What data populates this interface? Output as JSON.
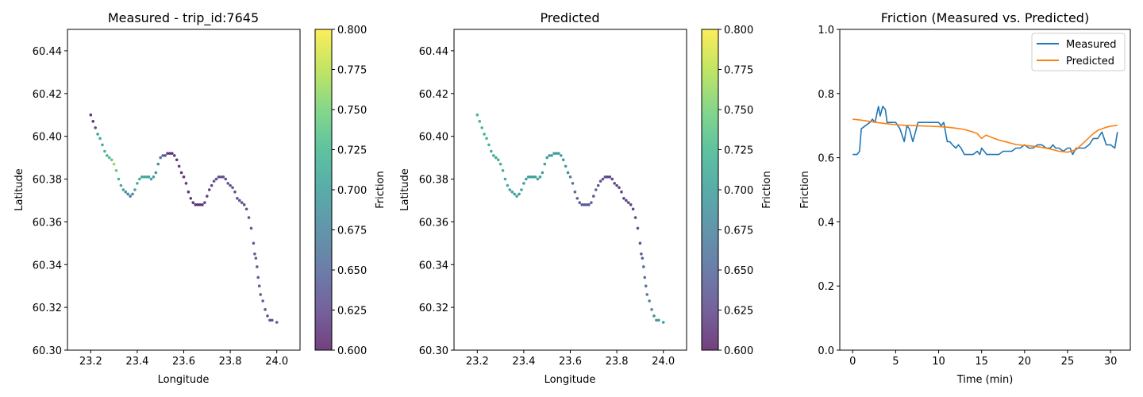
{
  "chart_data": [
    {
      "type": "scatter",
      "title": "Measured - trip_id:7645",
      "xlabel": "Longitude",
      "ylabel": "Latitude",
      "xlim": [
        23.1,
        24.1
      ],
      "ylim": [
        60.3,
        60.45
      ],
      "xticks": [
        "23.2",
        "23.4",
        "23.6",
        "23.8",
        "24.0"
      ],
      "yticks": [
        "60.30",
        "60.32",
        "60.34",
        "60.36",
        "60.38",
        "60.40",
        "60.42",
        "60.44"
      ],
      "colorbar": {
        "label": "Friction",
        "range": [
          0.6,
          0.8
        ],
        "ticks": [
          "0.600",
          "0.625",
          "0.650",
          "0.675",
          "0.700",
          "0.725",
          "0.750",
          "0.775",
          "0.800"
        ]
      },
      "points": [
        [
          23.2,
          60.41,
          0.61
        ],
        [
          23.21,
          60.407,
          0.61
        ],
        [
          23.22,
          60.404,
          0.62
        ],
        [
          23.23,
          60.401,
          0.7
        ],
        [
          23.24,
          60.399,
          0.71
        ],
        [
          23.25,
          60.396,
          0.71
        ],
        [
          23.26,
          60.393,
          0.72
        ],
        [
          23.27,
          60.391,
          0.72
        ],
        [
          23.28,
          60.39,
          0.73
        ],
        [
          23.29,
          60.389,
          0.74
        ],
        [
          23.3,
          60.387,
          0.76
        ],
        [
          23.31,
          60.384,
          0.74
        ],
        [
          23.32,
          60.38,
          0.72
        ],
        [
          23.33,
          60.377,
          0.71
        ],
        [
          23.34,
          60.375,
          0.7
        ],
        [
          23.35,
          60.374,
          0.69
        ],
        [
          23.36,
          60.373,
          0.67
        ],
        [
          23.37,
          60.372,
          0.66
        ],
        [
          23.38,
          60.373,
          0.68
        ],
        [
          23.39,
          60.375,
          0.7
        ],
        [
          23.4,
          60.378,
          0.71
        ],
        [
          23.41,
          60.38,
          0.71
        ],
        [
          23.42,
          60.381,
          0.71
        ],
        [
          23.43,
          60.381,
          0.71
        ],
        [
          23.44,
          60.381,
          0.71
        ],
        [
          23.45,
          60.381,
          0.7
        ],
        [
          23.46,
          60.38,
          0.7
        ],
        [
          23.47,
          60.381,
          0.7
        ],
        [
          23.48,
          60.383,
          0.69
        ],
        [
          23.49,
          60.387,
          0.68
        ],
        [
          23.5,
          60.39,
          0.66
        ],
        [
          23.51,
          60.391,
          0.65
        ],
        [
          23.52,
          60.391,
          0.63
        ],
        [
          23.53,
          60.392,
          0.62
        ],
        [
          23.54,
          60.392,
          0.61
        ],
        [
          23.55,
          60.392,
          0.61
        ],
        [
          23.56,
          60.391,
          0.61
        ],
        [
          23.57,
          60.389,
          0.61
        ],
        [
          23.58,
          60.386,
          0.61
        ],
        [
          23.59,
          60.383,
          0.61
        ],
        [
          23.6,
          60.381,
          0.61
        ],
        [
          23.61,
          60.378,
          0.61
        ],
        [
          23.62,
          60.374,
          0.61
        ],
        [
          23.63,
          60.371,
          0.61
        ],
        [
          23.64,
          60.369,
          0.61
        ],
        [
          23.65,
          60.368,
          0.61
        ],
        [
          23.66,
          60.368,
          0.61
        ],
        [
          23.67,
          60.368,
          0.61
        ],
        [
          23.68,
          60.368,
          0.61
        ],
        [
          23.69,
          60.369,
          0.62
        ],
        [
          23.7,
          60.372,
          0.62
        ],
        [
          23.71,
          60.375,
          0.62
        ],
        [
          23.72,
          60.377,
          0.62
        ],
        [
          23.73,
          60.379,
          0.63
        ],
        [
          23.74,
          60.38,
          0.63
        ],
        [
          23.75,
          60.381,
          0.63
        ],
        [
          23.76,
          60.381,
          0.63
        ],
        [
          23.77,
          60.381,
          0.63
        ],
        [
          23.78,
          60.38,
          0.63
        ],
        [
          23.79,
          60.378,
          0.63
        ],
        [
          23.8,
          60.377,
          0.63
        ],
        [
          23.81,
          60.376,
          0.63
        ],
        [
          23.82,
          60.374,
          0.63
        ],
        [
          23.83,
          60.371,
          0.63
        ],
        [
          23.84,
          60.37,
          0.63
        ],
        [
          23.85,
          60.369,
          0.63
        ],
        [
          23.86,
          60.368,
          0.63
        ],
        [
          23.87,
          60.366,
          0.63
        ],
        [
          23.88,
          60.362,
          0.63
        ],
        [
          23.89,
          60.357,
          0.64
        ],
        [
          23.9,
          60.35,
          0.64
        ],
        [
          23.905,
          60.345,
          0.64
        ],
        [
          23.91,
          60.343,
          0.64
        ],
        [
          23.915,
          60.339,
          0.64
        ],
        [
          23.92,
          60.334,
          0.64
        ],
        [
          23.925,
          60.33,
          0.64
        ],
        [
          23.93,
          60.326,
          0.64
        ],
        [
          23.94,
          60.323,
          0.64
        ],
        [
          23.95,
          60.319,
          0.64
        ],
        [
          23.96,
          60.316,
          0.63
        ],
        [
          23.97,
          60.314,
          0.63
        ],
        [
          23.98,
          60.314,
          0.63
        ],
        [
          24.0,
          60.313,
          0.64
        ]
      ]
    },
    {
      "type": "scatter",
      "title": "Predicted",
      "xlabel": "Longitude",
      "ylabel": "Latitude",
      "xlim": [
        23.1,
        24.1
      ],
      "ylim": [
        60.3,
        60.45
      ],
      "xticks": [
        "23.2",
        "23.4",
        "23.6",
        "23.8",
        "24.0"
      ],
      "yticks": [
        "60.30",
        "60.32",
        "60.34",
        "60.36",
        "60.38",
        "60.40",
        "60.42",
        "60.44"
      ],
      "colorbar": {
        "label": "Friction",
        "range": [
          0.6,
          0.8
        ],
        "ticks": [
          "0.600",
          "0.625",
          "0.650",
          "0.675",
          "0.700",
          "0.725",
          "0.750",
          "0.775",
          "0.800"
        ]
      },
      "points": [
        [
          23.2,
          60.41,
          0.72
        ],
        [
          23.21,
          60.407,
          0.72
        ],
        [
          23.22,
          60.404,
          0.72
        ],
        [
          23.23,
          60.401,
          0.72
        ],
        [
          23.24,
          60.399,
          0.72
        ],
        [
          23.25,
          60.396,
          0.72
        ],
        [
          23.26,
          60.393,
          0.71
        ],
        [
          23.27,
          60.391,
          0.71
        ],
        [
          23.28,
          60.39,
          0.71
        ],
        [
          23.29,
          60.389,
          0.71
        ],
        [
          23.3,
          60.387,
          0.71
        ],
        [
          23.31,
          60.384,
          0.71
        ],
        [
          23.32,
          60.38,
          0.71
        ],
        [
          23.33,
          60.377,
          0.71
        ],
        [
          23.34,
          60.375,
          0.7
        ],
        [
          23.35,
          60.374,
          0.7
        ],
        [
          23.36,
          60.373,
          0.7
        ],
        [
          23.37,
          60.372,
          0.7
        ],
        [
          23.38,
          60.373,
          0.7
        ],
        [
          23.39,
          60.375,
          0.7
        ],
        [
          23.4,
          60.378,
          0.7
        ],
        [
          23.41,
          60.38,
          0.7
        ],
        [
          23.42,
          60.381,
          0.7
        ],
        [
          23.43,
          60.381,
          0.7
        ],
        [
          23.44,
          60.381,
          0.7
        ],
        [
          23.45,
          60.381,
          0.7
        ],
        [
          23.46,
          60.38,
          0.7
        ],
        [
          23.47,
          60.381,
          0.7
        ],
        [
          23.48,
          60.383,
          0.7
        ],
        [
          23.49,
          60.387,
          0.7
        ],
        [
          23.5,
          60.39,
          0.7
        ],
        [
          23.51,
          60.391,
          0.7
        ],
        [
          23.52,
          60.391,
          0.7
        ],
        [
          23.53,
          60.392,
          0.7
        ],
        [
          23.54,
          60.392,
          0.7
        ],
        [
          23.55,
          60.392,
          0.7
        ],
        [
          23.56,
          60.391,
          0.7
        ],
        [
          23.57,
          60.389,
          0.69
        ],
        [
          23.58,
          60.386,
          0.69
        ],
        [
          23.59,
          60.383,
          0.68
        ],
        [
          23.6,
          60.381,
          0.67
        ],
        [
          23.61,
          60.378,
          0.66
        ],
        [
          23.62,
          60.374,
          0.65
        ],
        [
          23.63,
          60.371,
          0.64
        ],
        [
          23.64,
          60.369,
          0.64
        ],
        [
          23.65,
          60.368,
          0.64
        ],
        [
          23.66,
          60.368,
          0.64
        ],
        [
          23.67,
          60.368,
          0.64
        ],
        [
          23.68,
          60.368,
          0.64
        ],
        [
          23.69,
          60.369,
          0.64
        ],
        [
          23.7,
          60.372,
          0.64
        ],
        [
          23.71,
          60.375,
          0.64
        ],
        [
          23.72,
          60.377,
          0.63
        ],
        [
          23.73,
          60.379,
          0.63
        ],
        [
          23.74,
          60.38,
          0.63
        ],
        [
          23.75,
          60.381,
          0.63
        ],
        [
          23.76,
          60.381,
          0.62
        ],
        [
          23.77,
          60.381,
          0.62
        ],
        [
          23.78,
          60.38,
          0.62
        ],
        [
          23.79,
          60.378,
          0.62
        ],
        [
          23.8,
          60.377,
          0.62
        ],
        [
          23.81,
          60.376,
          0.62
        ],
        [
          23.82,
          60.374,
          0.62
        ],
        [
          23.83,
          60.371,
          0.62
        ],
        [
          23.84,
          60.37,
          0.62
        ],
        [
          23.85,
          60.369,
          0.62
        ],
        [
          23.86,
          60.368,
          0.62
        ],
        [
          23.87,
          60.366,
          0.62
        ],
        [
          23.88,
          60.362,
          0.62
        ],
        [
          23.89,
          60.357,
          0.63
        ],
        [
          23.9,
          60.35,
          0.63
        ],
        [
          23.905,
          60.345,
          0.64
        ],
        [
          23.91,
          60.343,
          0.64
        ],
        [
          23.915,
          60.339,
          0.65
        ],
        [
          23.92,
          60.334,
          0.65
        ],
        [
          23.925,
          60.33,
          0.66
        ],
        [
          23.93,
          60.326,
          0.67
        ],
        [
          23.94,
          60.323,
          0.67
        ],
        [
          23.95,
          60.319,
          0.68
        ],
        [
          23.96,
          60.316,
          0.68
        ],
        [
          23.97,
          60.314,
          0.69
        ],
        [
          23.98,
          60.314,
          0.69
        ],
        [
          24.0,
          60.313,
          0.7
        ]
      ]
    },
    {
      "type": "line",
      "title": "Friction (Measured vs. Predicted)",
      "xlabel": "Time (min)",
      "ylabel": "Friction",
      "xlim": [
        -1.5,
        32.3
      ],
      "ylim": [
        0.0,
        1.0
      ],
      "xticks": [
        "0",
        "5",
        "10",
        "15",
        "20",
        "25",
        "30"
      ],
      "yticks": [
        "0.0",
        "0.2",
        "0.4",
        "0.6",
        "0.8",
        "1.0"
      ],
      "legend": "top-right",
      "series": [
        {
          "name": "Measured",
          "color": "#1f77b4",
          "x": [
            0,
            0.5,
            0.8,
            1.0,
            1.5,
            2.0,
            2.3,
            2.6,
            3.0,
            3.2,
            3.5,
            3.8,
            4.0,
            4.3,
            4.6,
            5.0,
            5.5,
            6.0,
            6.3,
            6.6,
            7.0,
            7.3,
            7.6,
            8.0,
            8.5,
            9.0,
            9.5,
            10.0,
            10.3,
            10.6,
            11.0,
            11.3,
            11.6,
            12.0,
            12.3,
            12.6,
            13.0,
            13.3,
            13.6,
            14.0,
            14.5,
            14.8,
            15.0,
            15.3,
            15.6,
            16.0,
            16.5,
            17.0,
            17.5,
            18.0,
            18.5,
            19.0,
            19.5,
            20.0,
            20.5,
            21.0,
            21.5,
            22.0,
            22.5,
            23.0,
            23.3,
            23.6,
            24.0,
            24.5,
            25.0,
            25.3,
            25.6,
            26.0,
            26.5,
            27.0,
            27.5,
            28.0,
            28.5,
            29.0,
            29.5,
            30.0,
            30.5,
            30.8
          ],
          "y": [
            0.61,
            0.61,
            0.62,
            0.69,
            0.7,
            0.71,
            0.72,
            0.71,
            0.76,
            0.73,
            0.76,
            0.75,
            0.71,
            0.71,
            0.71,
            0.71,
            0.69,
            0.65,
            0.7,
            0.69,
            0.65,
            0.68,
            0.71,
            0.71,
            0.71,
            0.71,
            0.71,
            0.71,
            0.7,
            0.71,
            0.65,
            0.65,
            0.64,
            0.63,
            0.64,
            0.63,
            0.61,
            0.61,
            0.61,
            0.61,
            0.62,
            0.61,
            0.63,
            0.62,
            0.61,
            0.61,
            0.61,
            0.61,
            0.62,
            0.62,
            0.62,
            0.63,
            0.63,
            0.64,
            0.63,
            0.63,
            0.64,
            0.64,
            0.63,
            0.63,
            0.64,
            0.63,
            0.63,
            0.62,
            0.63,
            0.63,
            0.61,
            0.63,
            0.63,
            0.63,
            0.64,
            0.66,
            0.66,
            0.68,
            0.64,
            0.64,
            0.63,
            0.68
          ]
        },
        {
          "name": "Predicted",
          "color": "#ff7f0e",
          "x": [
            0,
            1,
            2,
            3,
            4,
            5,
            6,
            7,
            8,
            9,
            10,
            11,
            12,
            13,
            14,
            14.5,
            15,
            15.5,
            16,
            16.5,
            17,
            18,
            19,
            20,
            21,
            22,
            23,
            24,
            25,
            26,
            27,
            28,
            28.5,
            29,
            29.5,
            30,
            30.5,
            30.8
          ],
          "y": [
            0.72,
            0.717,
            0.713,
            0.709,
            0.706,
            0.703,
            0.701,
            0.7,
            0.699,
            0.698,
            0.697,
            0.695,
            0.692,
            0.688,
            0.68,
            0.675,
            0.66,
            0.67,
            0.665,
            0.66,
            0.655,
            0.648,
            0.641,
            0.638,
            0.636,
            0.632,
            0.627,
            0.62,
            0.617,
            0.625,
            0.65,
            0.675,
            0.685,
            0.69,
            0.695,
            0.698,
            0.7,
            0.7
          ]
        }
      ]
    }
  ]
}
